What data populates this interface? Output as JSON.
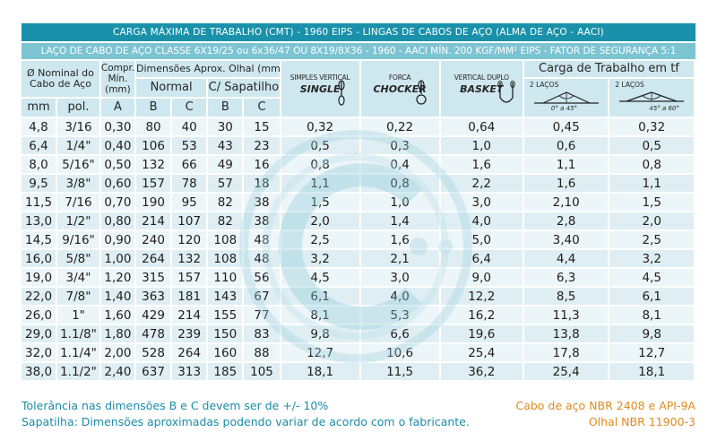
{
  "title": "CARGA MÁXIMA DE TRABALHO (CMT) - 1960 EIPS - LINGAS DE CABOS DE AÇO (ALMA DE AÇO - AACI)",
  "subtitle": "LAÇO DE CABO DE AÇO CLASSE 6X19/25 ou 6x36/47 OU 8X19/8X36 - 1960 - AACI MÍN. 200 KGF/MM² EIPS - FATOR DE SEGURANÇA 5:1",
  "headers": {
    "nominal": "Ø Nominal do Cabo de Aço",
    "compr": "Compr. Mín. (mm)",
    "dims": "Dimensões Aprox. Olhal (mm)",
    "normal": "Normal",
    "sapatilho": "C/ Sapatilho",
    "carga": "Carga de Trabalho em tf",
    "mm": "mm",
    "pol": "pol.",
    "a": "A",
    "b": "B",
    "c": "C",
    "b2": "B",
    "c2": "C",
    "single_small": "SIMPLES VERTICAL",
    "single": "SINGLE",
    "choker_small": "FORCA",
    "choker": "CHOCKER",
    "basket_small": "VERTICAL DUPLO",
    "basket": "BASKET",
    "two_legs_1": "2 LAÇOS",
    "angle_1": "0° a 45°",
    "two_legs_2": "2 LAÇOS",
    "angle_2": "45° a 60°"
  },
  "rows": [
    [
      "4,8",
      "3/16",
      "0,30",
      "80",
      "40",
      "30",
      "15",
      "0,32",
      "0,22",
      "0,64",
      "0,45",
      "0,32"
    ],
    [
      "6,4",
      "1/4\"",
      "0,40",
      "106",
      "53",
      "43",
      "23",
      "0,5",
      "0,3",
      "1,0",
      "0,6",
      "0,5"
    ],
    [
      "8,0",
      "5/16\"",
      "0,50",
      "132",
      "66",
      "49",
      "16",
      "0,8",
      "0,4",
      "1,6",
      "1,1",
      "0,8"
    ],
    [
      "9,5",
      "3/8\"",
      "0,60",
      "157",
      "78",
      "57",
      "18",
      "1,1",
      "0,8",
      "2,2",
      "1,6",
      "1,1"
    ],
    [
      "11,5",
      "7/16",
      "0,70",
      "190",
      "95",
      "82",
      "38",
      "1,5",
      "1,0",
      "3,0",
      "2,10",
      "1,5"
    ],
    [
      "13,0",
      "1/2\"",
      "0,80",
      "214",
      "107",
      "82",
      "38",
      "2,0",
      "1,4",
      "4,0",
      "2,8",
      "2,0"
    ],
    [
      "14,5",
      "9/16\"",
      "0,90",
      "240",
      "120",
      "108",
      "48",
      "2,5",
      "1,6",
      "5,0",
      "3,40",
      "2,5"
    ],
    [
      "16,0",
      "5/8\"",
      "1,00",
      "264",
      "132",
      "108",
      "48",
      "3,2",
      "2,1",
      "6,4",
      "4,4",
      "3,2"
    ],
    [
      "19,0",
      "3/4\"",
      "1,20",
      "315",
      "157",
      "110",
      "56",
      "4,5",
      "3,0",
      "9,0",
      "6,3",
      "4,5"
    ],
    [
      "22,0",
      "7/8\"",
      "1,40",
      "363",
      "181",
      "143",
      "67",
      "6,1",
      "4,0",
      "12,2",
      "8,5",
      "6,1"
    ],
    [
      "26,0",
      "1\"",
      "1,60",
      "429",
      "214",
      "155",
      "77",
      "8,1",
      "5,3",
      "16,2",
      "11,3",
      "8,1"
    ],
    [
      "29,0",
      "1.1/8\"",
      "1,80",
      "478",
      "239",
      "150",
      "83",
      "9,8",
      "6,6",
      "19,6",
      "13,8",
      "9,8"
    ],
    [
      "32,0",
      "1.1/4\"",
      "2,00",
      "528",
      "264",
      "160",
      "88",
      "12,7",
      "10,6",
      "25,4",
      "17,8",
      "12,7"
    ],
    [
      "38,0",
      "1.1/2\"",
      "2,40",
      "637",
      "313",
      "185",
      "105",
      "18,1",
      "11,5",
      "36,2",
      "25,4",
      "18,1"
    ]
  ],
  "footer": {
    "tolerance": "Tolerância nas dimensões B e C devem ser de +/- 10%",
    "sapatilha": "Sapatilha: Dimensões aproximadas podendo variar de acordo com o fabricante.",
    "norm1": "Cabo de aço NBR 2408 e API-9A",
    "norm2": "Olhal NBR 11900-3"
  },
  "colors": {
    "title_bg": "#1a91ab",
    "subtitle_bg": "#7dc4d3",
    "footer_left": "#1a8ca6",
    "footer_right": "#e08a21"
  }
}
